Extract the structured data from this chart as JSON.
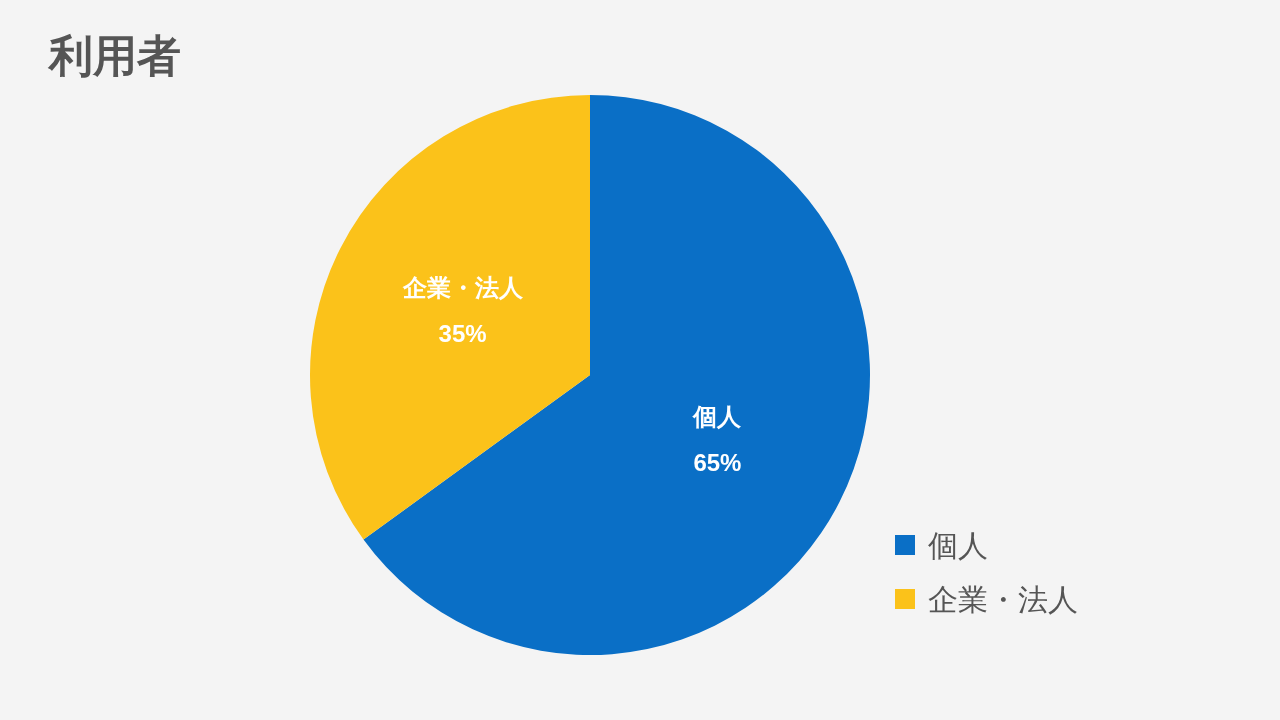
{
  "chart_data": {
    "type": "pie",
    "title": "利用者",
    "categories": [
      "個人",
      "企業・法人"
    ],
    "values": [
      65,
      35
    ],
    "value_labels": [
      "65%",
      "35%"
    ],
    "colors": [
      "#0a6fc6",
      "#fbc21a"
    ],
    "legend": "bottom right"
  }
}
